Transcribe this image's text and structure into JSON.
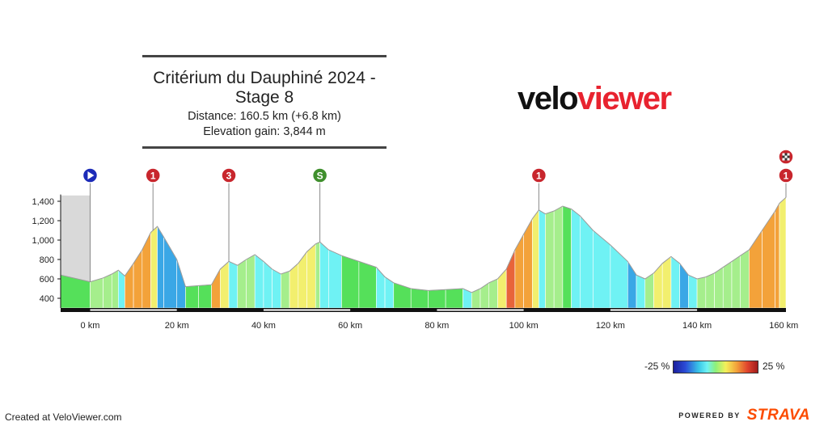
{
  "chart_data": {
    "type": "area",
    "title": "Critérium du Dauphiné 2024 - Stage 8",
    "subtitle_lines": [
      "Distance: 160.5 km (+6.8 km)",
      "Elevation gain: 3,844 m"
    ],
    "xlabel": "",
    "ylabel": "",
    "xlim": [
      -6.8,
      160.5
    ],
    "ylim": [
      300,
      1500
    ],
    "x_ticks": [
      0,
      20,
      40,
      60,
      80,
      100,
      120,
      140,
      160
    ],
    "x_tick_labels": [
      "0 km",
      "20 km",
      "40 km",
      "60 km",
      "80 km",
      "100 km",
      "120 km",
      "140 km",
      "160 km"
    ],
    "y_ticks": [
      400,
      600,
      800,
      1000,
      1200,
      1400
    ],
    "y_tick_labels": [
      "400",
      "600",
      "800",
      "1,000",
      "1,200",
      "1,400"
    ],
    "grid": false,
    "profile": {
      "x": [
        -6.8,
        0,
        3,
        5,
        6.5,
        8,
        10,
        12,
        14,
        15.5,
        17,
        20,
        22,
        25,
        28,
        30,
        32,
        34,
        36,
        38,
        40,
        42,
        44,
        46,
        48,
        50,
        52,
        53,
        55,
        58,
        62,
        66,
        68,
        70,
        74,
        78,
        82,
        86,
        88,
        90,
        92,
        94,
        96,
        98,
        100,
        102,
        103.5,
        105,
        107,
        109,
        111,
        113,
        116,
        120,
        124,
        126,
        128,
        130,
        132,
        134,
        136,
        138,
        140,
        142,
        144,
        146,
        148,
        150,
        152,
        155,
        158,
        159,
        160.5
      ],
      "elevation": [
        640,
        570,
        610,
        650,
        690,
        630,
        760,
        900,
        1080,
        1140,
        1030,
        800,
        520,
        530,
        540,
        700,
        780,
        740,
        800,
        850,
        780,
        700,
        650,
        680,
        760,
        880,
        960,
        980,
        900,
        840,
        780,
        720,
        620,
        560,
        500,
        480,
        490,
        500,
        460,
        500,
        560,
        600,
        700,
        900,
        1060,
        1220,
        1310,
        1270,
        1300,
        1350,
        1320,
        1250,
        1100,
        950,
        780,
        640,
        600,
        660,
        760,
        830,
        760,
        640,
        600,
        620,
        660,
        720,
        780,
        840,
        900,
        1100,
        1300,
        1380,
        1440
      ]
    },
    "grade_colors": [
      "#55e05a",
      "#a5ee8c",
      "#f2ef6e",
      "#f3a23a",
      "#3aa7e6",
      "#6ff2f4",
      "#e8643a"
    ],
    "markers": [
      {
        "km": 0,
        "label": "",
        "kind": "start",
        "color": "#1c2bb8"
      },
      {
        "km": 14.5,
        "label": "1",
        "kind": "climb",
        "color": "#c8262d"
      },
      {
        "km": 32,
        "label": "3",
        "kind": "climb",
        "color": "#c8262d"
      },
      {
        "km": 53,
        "label": "S",
        "kind": "sprint",
        "color": "#3f8f2d"
      },
      {
        "km": 103.5,
        "label": "1",
        "kind": "climb",
        "color": "#c8262d"
      },
      {
        "km": 160.5,
        "label": "1",
        "kind": "climb-finish",
        "color": "#c8262d"
      }
    ],
    "grade_scale": {
      "min_label": "-25 %",
      "max_label": "25 %"
    }
  },
  "logo": {
    "part1": "velo",
    "part2": "viewer"
  },
  "footer": {
    "credit": "Created at VeloViewer.com",
    "powered": "POWERED BY",
    "brand": "STRAVA"
  }
}
